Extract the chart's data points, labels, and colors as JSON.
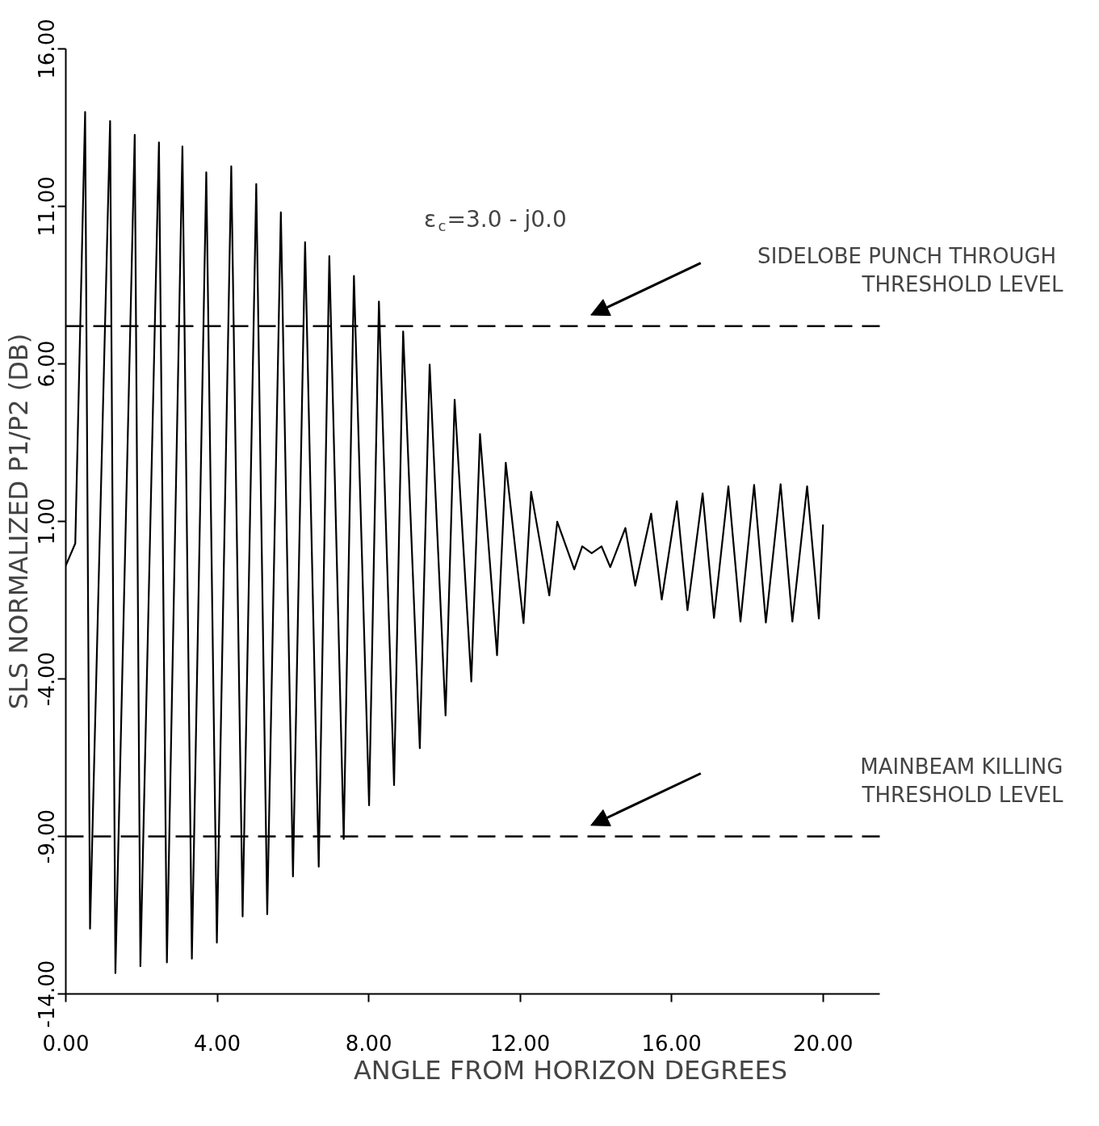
{
  "chart_data": {
    "type": "line",
    "xlabel": "ANGLE FROM HORIZON DEGREES",
    "ylabel": "SLS NORMALIZED P1/P2 (DB)",
    "xlim": [
      0,
      21.5
    ],
    "ylim": [
      -14,
      16
    ],
    "xticks": [
      {
        "value": 0,
        "label": "0.00"
      },
      {
        "value": 4,
        "label": "4.00"
      },
      {
        "value": 8,
        "label": "8.00"
      },
      {
        "value": 12,
        "label": "12.00"
      },
      {
        "value": 16,
        "label": "16.00"
      },
      {
        "value": 20,
        "label": "20.00"
      }
    ],
    "yticks": [
      {
        "value": -14,
        "label": "-14.00"
      },
      {
        "value": -9,
        "label": "-9.00"
      },
      {
        "value": -4,
        "label": "-4.00"
      },
      {
        "value": 1,
        "label": "1.00"
      },
      {
        "value": 6,
        "label": "6.00"
      },
      {
        "value": 11,
        "label": "11.00"
      },
      {
        "value": 16,
        "label": "16.00"
      }
    ],
    "grid": false,
    "marker": "none",
    "line_style": "solid",
    "annotations": [
      "ε$_{c}$=3.0 - j0.0"
    ],
    "ref_lines": [
      {
        "axis": "y",
        "value": 7.2,
        "label": "SIDELOBE  PUNCH THROUGH\nTHRESHOLD LEVEL",
        "line_style": "dashed",
        "color": "#000000"
      },
      {
        "axis": "y",
        "value": -9.0,
        "label": "MAINBEAM KILLING\nTHRESHOLD LEVEL",
        "line_style": "dashed",
        "color": "#000000"
      }
    ],
    "series": [
      {
        "color": "#000000",
        "x": [
          0,
          0.25,
          0.51,
          0.64,
          1.17,
          1.31,
          1.82,
          1.97,
          2.46,
          2.67,
          3.08,
          3.33,
          3.71,
          3.99,
          4.37,
          4.67,
          5.03,
          5.32,
          5.68,
          6.0,
          6.32,
          6.68,
          6.96,
          7.34,
          7.61,
          8.01,
          8.27,
          8.67,
          8.91,
          9.35,
          9.61,
          10.03,
          10.27,
          10.71,
          10.94,
          11.39,
          11.62,
          12.09,
          12.29,
          12.77,
          12.98,
          13.43,
          13.64,
          13.89,
          14.15,
          14.38,
          14.78,
          15.04,
          15.46,
          15.74,
          16.14,
          16.42,
          16.82,
          17.12,
          17.5,
          17.82,
          18.18,
          18.49,
          18.88,
          19.19,
          19.58,
          19.89,
          20.0
        ],
        "values": [
          -0.4,
          0.3,
          14.0,
          -11.93,
          13.71,
          -13.34,
          13.27,
          -13.12,
          13.03,
          -13.0,
          12.9,
          -12.88,
          12.08,
          -12.37,
          12.27,
          -11.54,
          11.71,
          -11.47,
          10.81,
          -10.27,
          9.86,
          -9.96,
          9.42,
          -9.08,
          8.79,
          -8.01,
          7.98,
          -7.37,
          7.03,
          -6.2,
          5.98,
          -5.16,
          4.86,
          -4.08,
          3.77,
          -3.25,
          2.86,
          -2.23,
          1.94,
          -1.35,
          0.99,
          -0.52,
          0.21,
          -0.01,
          0.21,
          -0.45,
          0.79,
          -1.04,
          1.25,
          -1.48,
          1.64,
          -1.82,
          1.89,
          -2.06,
          2.11,
          -2.18,
          2.16,
          -2.21,
          2.18,
          -2.18,
          2.11,
          -2.08,
          0.9
        ]
      }
    ]
  }
}
